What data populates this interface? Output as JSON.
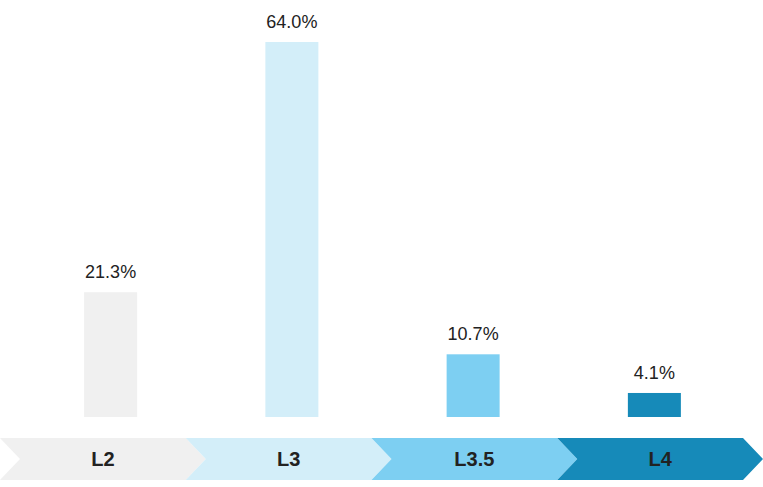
{
  "chart_data": {
    "type": "bar",
    "categories": [
      "L2",
      "L3",
      "L3.5",
      "L4"
    ],
    "values": [
      21.3,
      64.0,
      10.7,
      4.1
    ],
    "value_labels": [
      "21.3%",
      "64.0%",
      "10.7%",
      "4.1%"
    ],
    "colors": [
      "#f0f0f0",
      "#d3eef9",
      "#7dcff2",
      "#168ab9"
    ],
    "ylim": [
      0,
      64
    ],
    "data_labels": true,
    "tick_labels": false
  }
}
